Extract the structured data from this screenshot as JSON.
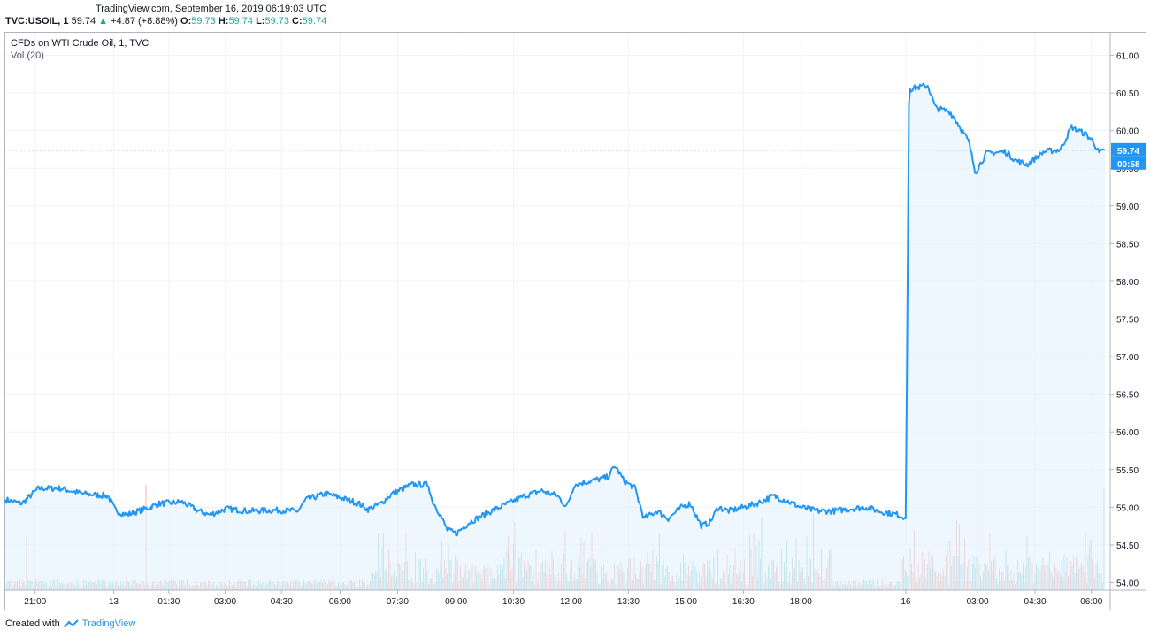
{
  "header": {
    "source_line": "TradingView.com, September 16, 2019 06:19:03 UTC",
    "symbol": "TVC:USOIL, 1",
    "last": "59.74",
    "change": "+4.87 (+8.88%)",
    "o_label": "O:",
    "o_val": "59.73",
    "h_label": "H:",
    "h_val": "59.74",
    "l_label": "L:",
    "l_val": "59.73",
    "c_label": "C:",
    "c_val": "59.74"
  },
  "legend": {
    "title": "CFDs on WTI Crude Oil, 1, TVC",
    "volume": "Vol (20)"
  },
  "footer": {
    "created_with": "Created with",
    "brand": "TradingView"
  },
  "colors": {
    "line": "#2196f3",
    "fill": "#e3f2fd",
    "vol_up": "#26a69a",
    "vol_down": "#ef5350",
    "grid": "#f0f3fa",
    "axis_text": "#131722",
    "badge": "#2196f3"
  },
  "chart_data": {
    "type": "area",
    "title": "CFDs on WTI Crude Oil, 1, TVC",
    "xlabel": "",
    "ylabel": "",
    "ylim": [
      53.9,
      61.3
    ],
    "y_ticks": [
      "61.00",
      "60.50",
      "60.00",
      "59.50",
      "59.00",
      "58.50",
      "58.00",
      "57.50",
      "57.00",
      "56.50",
      "56.00",
      "55.50",
      "55.00",
      "54.50",
      "54.00"
    ],
    "x_ticks": [
      {
        "label": "21:00",
        "pos": 0.027
      },
      {
        "label": "13",
        "pos": 0.098
      },
      {
        "label": "01:30",
        "pos": 0.148
      },
      {
        "label": "03:00",
        "pos": 0.199
      },
      {
        "label": "04:30",
        "pos": 0.25
      },
      {
        "label": "06:00",
        "pos": 0.303
      },
      {
        "label": "07:30",
        "pos": 0.355
      },
      {
        "label": "09:00",
        "pos": 0.408
      },
      {
        "label": "10:30",
        "pos": 0.46
      },
      {
        "label": "12:00",
        "pos": 0.512
      },
      {
        "label": "13:30",
        "pos": 0.564
      },
      {
        "label": "15:00",
        "pos": 0.616
      },
      {
        "label": "16:30",
        "pos": 0.668
      },
      {
        "label": "18:00",
        "pos": 0.72
      },
      {
        "label": "16",
        "pos": 0.815
      },
      {
        "label": "03:00",
        "pos": 0.88
      },
      {
        "label": "04:30",
        "pos": 0.932
      },
      {
        "label": "06:00",
        "pos": 0.983
      }
    ],
    "series": [
      {
        "name": "USOIL",
        "points": [
          [
            0.0,
            55.1
          ],
          [
            0.015,
            55.05
          ],
          [
            0.03,
            55.25
          ],
          [
            0.05,
            55.25
          ],
          [
            0.07,
            55.18
          ],
          [
            0.093,
            55.15
          ],
          [
            0.1,
            54.95
          ],
          [
            0.11,
            54.9
          ],
          [
            0.125,
            54.97
          ],
          [
            0.14,
            55.05
          ],
          [
            0.16,
            55.07
          ],
          [
            0.175,
            54.95
          ],
          [
            0.185,
            54.9
          ],
          [
            0.2,
            54.98
          ],
          [
            0.22,
            54.95
          ],
          [
            0.245,
            54.96
          ],
          [
            0.265,
            54.95
          ],
          [
            0.272,
            55.1
          ],
          [
            0.29,
            55.18
          ],
          [
            0.305,
            55.12
          ],
          [
            0.32,
            55.05
          ],
          [
            0.328,
            54.97
          ],
          [
            0.34,
            55.05
          ],
          [
            0.35,
            55.18
          ],
          [
            0.368,
            55.3
          ],
          [
            0.383,
            55.3
          ],
          [
            0.386,
            55.1
          ],
          [
            0.393,
            54.92
          ],
          [
            0.4,
            54.7
          ],
          [
            0.408,
            54.65
          ],
          [
            0.42,
            54.8
          ],
          [
            0.44,
            54.95
          ],
          [
            0.455,
            55.05
          ],
          [
            0.47,
            55.15
          ],
          [
            0.485,
            55.22
          ],
          [
            0.5,
            55.15
          ],
          [
            0.508,
            55.0
          ],
          [
            0.515,
            55.3
          ],
          [
            0.53,
            55.35
          ],
          [
            0.545,
            55.4
          ],
          [
            0.552,
            55.55
          ],
          [
            0.56,
            55.35
          ],
          [
            0.57,
            55.25
          ],
          [
            0.578,
            54.85
          ],
          [
            0.59,
            54.95
          ],
          [
            0.6,
            54.85
          ],
          [
            0.612,
            55.0
          ],
          [
            0.62,
            55.05
          ],
          [
            0.63,
            54.75
          ],
          [
            0.638,
            54.8
          ],
          [
            0.645,
            55.0
          ],
          [
            0.655,
            54.95
          ],
          [
            0.668,
            55.0
          ],
          [
            0.68,
            55.05
          ],
          [
            0.695,
            55.15
          ],
          [
            0.705,
            55.1
          ],
          [
            0.72,
            55.0
          ],
          [
            0.735,
            54.95
          ],
          [
            0.75,
            54.95
          ],
          [
            0.765,
            54.98
          ],
          [
            0.78,
            55.0
          ],
          [
            0.79,
            54.95
          ],
          [
            0.808,
            54.9
          ],
          [
            0.815,
            54.85
          ],
          [
            0.818,
            60.55
          ],
          [
            0.828,
            60.58
          ],
          [
            0.835,
            60.6
          ],
          [
            0.842,
            60.3
          ],
          [
            0.855,
            60.25
          ],
          [
            0.862,
            60.1
          ],
          [
            0.872,
            59.85
          ],
          [
            0.878,
            59.45
          ],
          [
            0.888,
            59.7
          ],
          [
            0.905,
            59.72
          ],
          [
            0.915,
            59.6
          ],
          [
            0.925,
            59.55
          ],
          [
            0.94,
            59.72
          ],
          [
            0.955,
            59.75
          ],
          [
            0.965,
            60.05
          ],
          [
            0.978,
            59.95
          ],
          [
            0.985,
            59.85
          ],
          [
            0.99,
            59.7
          ],
          [
            0.995,
            59.74
          ]
        ]
      }
    ],
    "last_price": "59.74",
    "countdown": "00:58"
  }
}
